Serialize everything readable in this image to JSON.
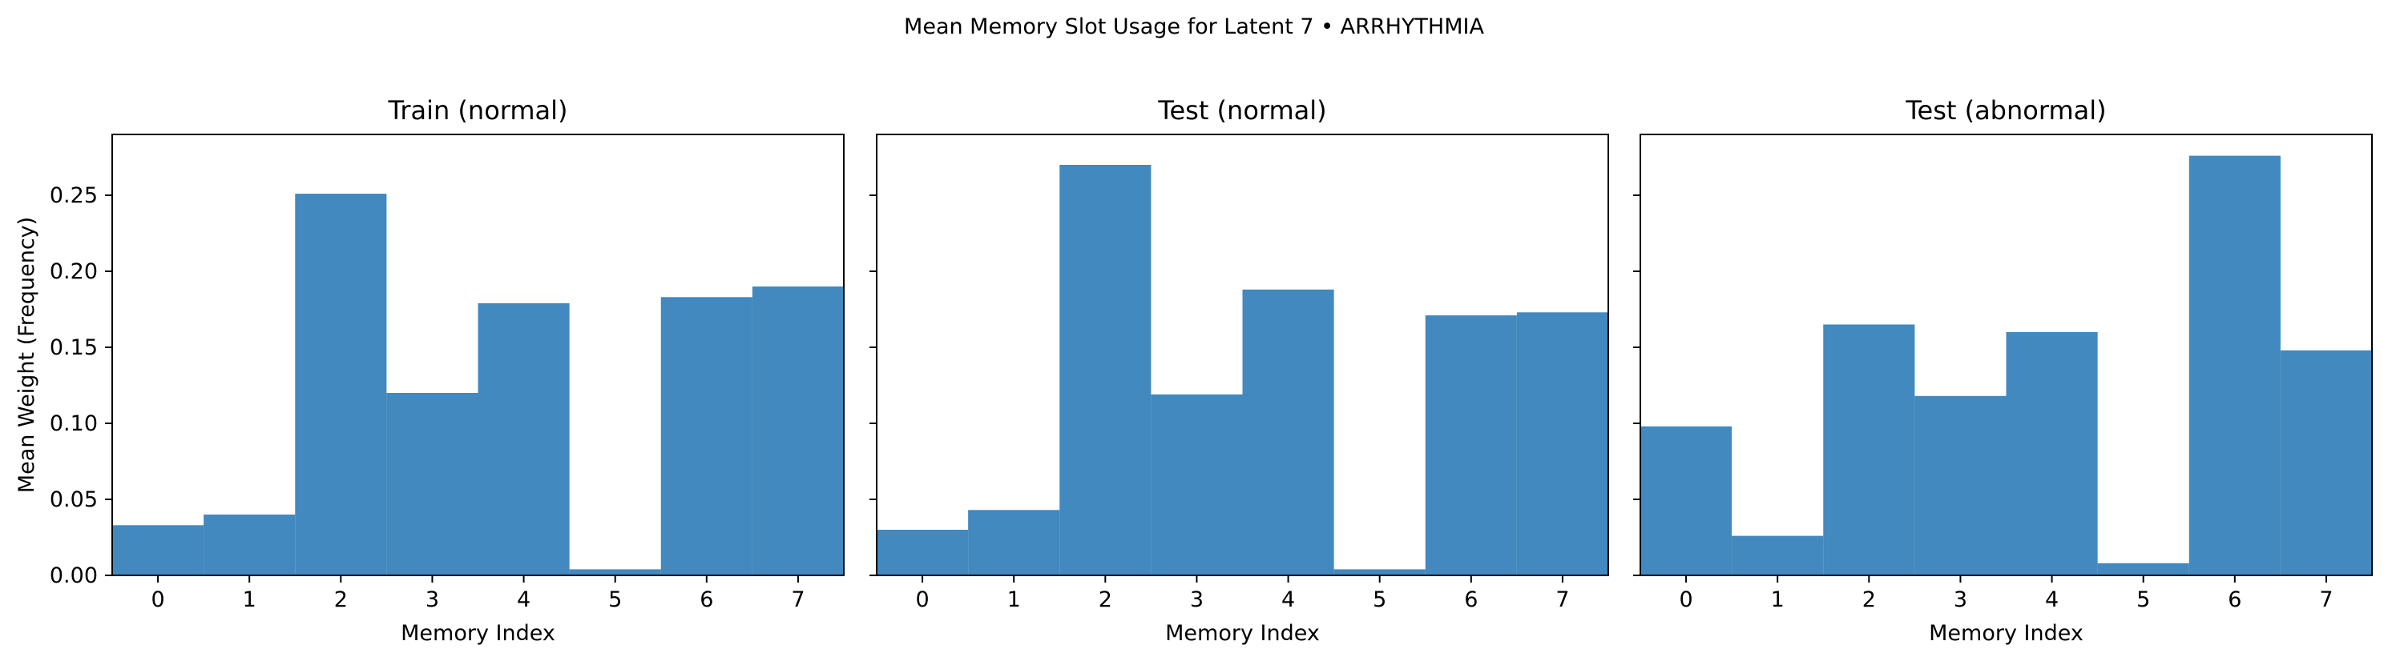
{
  "figure": {
    "title": "Mean Memory Slot Usage for Latent 7 • ARRHYTHMIA"
  },
  "chart_data": [
    {
      "type": "bar",
      "title": "Train (normal)",
      "xlabel": "Memory Index",
      "ylabel": "Mean Weight (Frequency)",
      "categories": [
        "0",
        "1",
        "2",
        "3",
        "4",
        "5",
        "6",
        "7"
      ],
      "values": [
        0.033,
        0.04,
        0.251,
        0.12,
        0.179,
        0.004,
        0.183,
        0.19
      ],
      "ylim": [
        0,
        0.29
      ],
      "yticks": [
        0.0,
        0.05,
        0.1,
        0.15,
        0.2,
        0.25
      ],
      "ytick_labels": [
        "0.00",
        "0.05",
        "0.10",
        "0.15",
        "0.20",
        "0.25"
      ],
      "bar_color": "#4189bf",
      "grid": false,
      "show_ytick_labels": true
    },
    {
      "type": "bar",
      "title": "Test (normal)",
      "xlabel": "Memory Index",
      "ylabel": "",
      "categories": [
        "0",
        "1",
        "2",
        "3",
        "4",
        "5",
        "6",
        "7"
      ],
      "values": [
        0.03,
        0.043,
        0.27,
        0.119,
        0.188,
        0.004,
        0.171,
        0.173
      ],
      "ylim": [
        0,
        0.29
      ],
      "yticks": [
        0.0,
        0.05,
        0.1,
        0.15,
        0.2,
        0.25
      ],
      "ytick_labels": [],
      "bar_color": "#4189bf",
      "grid": false,
      "show_ytick_labels": false
    },
    {
      "type": "bar",
      "title": "Test (abnormal)",
      "xlabel": "Memory Index",
      "ylabel": "",
      "categories": [
        "0",
        "1",
        "2",
        "3",
        "4",
        "5",
        "6",
        "7"
      ],
      "values": [
        0.098,
        0.026,
        0.165,
        0.118,
        0.16,
        0.008,
        0.276,
        0.148
      ],
      "ylim": [
        0,
        0.29
      ],
      "yticks": [
        0.0,
        0.05,
        0.1,
        0.15,
        0.2,
        0.25
      ],
      "ytick_labels": [],
      "bar_color": "#4189bf",
      "grid": false,
      "show_ytick_labels": false
    }
  ]
}
